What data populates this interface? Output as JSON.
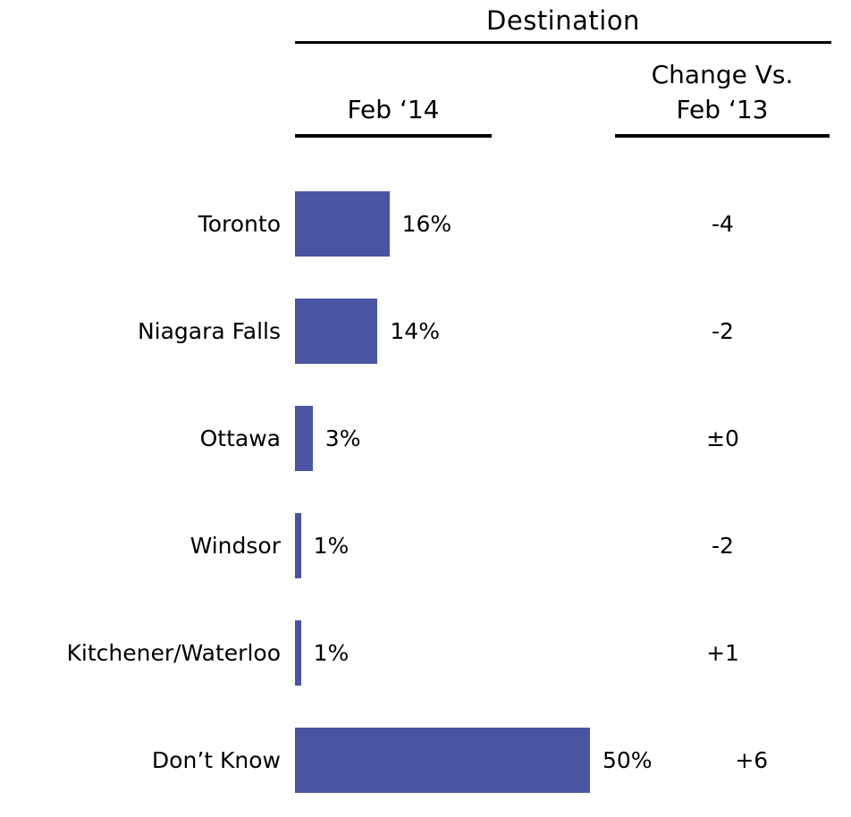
{
  "chart_data": {
    "type": "bar",
    "orientation": "horizontal",
    "title": "Destination",
    "column_headers": {
      "feb14": "Feb ‘14",
      "change_line1": "Change Vs.",
      "change_line2": "Feb ‘13"
    },
    "categories": [
      "Toronto",
      "Niagara Falls",
      "Ottawa",
      "Windsor",
      "Kitchener/Waterloo",
      "Don’t Know"
    ],
    "values": [
      16,
      14,
      3,
      1,
      1,
      50
    ],
    "value_labels": [
      "16%",
      "14%",
      "3%",
      "1%",
      "1%",
      "50%"
    ],
    "changes": [
      "-4",
      "-2",
      "±0",
      "-2",
      "+1",
      "+6"
    ],
    "bar_color": "#4A55A2",
    "xlim": [
      0,
      52
    ],
    "grid": false,
    "legend": "none"
  }
}
